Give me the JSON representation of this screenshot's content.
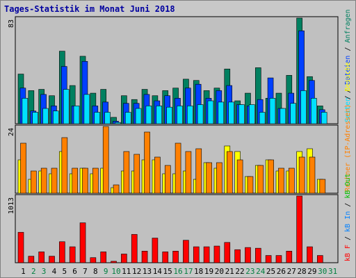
{
  "chart_data": {
    "type": "bar",
    "title": "Tages-Statistik im Monat Juni 2018",
    "categories": [
      1,
      2,
      3,
      4,
      5,
      6,
      7,
      8,
      9,
      10,
      11,
      12,
      13,
      14,
      15,
      16,
      17,
      18,
      19,
      20,
      21,
      22,
      23,
      24,
      25,
      26,
      27,
      28,
      29,
      30,
      31
    ],
    "weekend": [
      2,
      3,
      9,
      10,
      16,
      17,
      23,
      24,
      30,
      31
    ],
    "weekend_color": "#008040",
    "weekday_color": "#000000",
    "separator": "/",
    "panels": [
      {
        "ylim": [
          0,
          83
        ],
        "yticks": [
          83
        ],
        "series": [
          {
            "name": "Anfragen",
            "color": "#008060",
            "values": [
              39,
              26,
              27,
              22,
              57,
              30,
              53,
              24,
              27,
              5,
              22,
              19,
              27,
              22,
              26,
              28,
              35,
              34,
              26,
              28,
              43,
              18,
              24,
              44,
              20,
              24,
              38,
              83,
              37,
              14,
              null
            ]
          },
          {
            "name": "Dateien",
            "color": "#0040ff",
            "values": [
              28,
              10,
              23,
              14,
              45,
              14,
              49,
              14,
              17,
              2,
              16,
              16,
              23,
              18,
              22,
              20,
              28,
              31,
              20,
              26,
              30,
              15,
              14,
              19,
              36,
              12,
              24,
              73,
              34,
              11,
              null
            ]
          },
          {
            "name": "Seiten",
            "color": "#00e0ff",
            "values": [
              20,
              9,
              12,
              10,
              27,
              14,
              23,
              9,
              9,
              1,
              9,
              12,
              14,
              14,
              13,
              14,
              14,
              15,
              18,
              17,
              17,
              15,
              15,
              9,
              20,
              12,
              16,
              26,
              20,
              9,
              null
            ]
          }
        ]
      },
      {
        "ylim": [
          0,
          24
        ],
        "yticks": [
          24
        ],
        "series": [
          {
            "name": "Besuche",
            "color": "#ffff00",
            "values": [
              12,
              5,
              8,
              7,
              15,
              7,
              9,
              7,
              9,
              2,
              8,
              8,
              12,
              12,
              7,
              7,
              8,
              5,
              11,
              9,
              17,
              15,
              6,
              10,
              12,
              8,
              8,
              15,
              16,
              5,
              null
            ]
          },
          {
            "name": "Rechner (IP-Adressen)",
            "color": "#ff8000",
            "values": [
              18,
              8,
              9,
              9,
              20,
              9,
              9,
              9,
              24,
              3,
              15,
              14,
              22,
              13,
              10,
              18,
              15,
              16,
              11,
              11,
              15,
              12,
              6,
              10,
              12,
              9,
              9,
              13,
              13,
              5,
              null
            ]
          }
        ]
      },
      {
        "ylim": [
          0,
          1013
        ],
        "yticks": [
          1013
        ],
        "series": [
          {
            "name": "kB F",
            "color": "#ff0000",
            "values": [
              462,
              99,
              165,
              99,
              319,
              242,
              606,
              77,
              165,
              22,
              132,
              430,
              176,
              374,
              165,
              176,
              341,
              242,
              242,
              253,
              308,
              198,
              231,
              220,
              110,
              110,
              176,
              1013,
              242,
              110,
              null
            ]
          }
        ],
        "legend_only": [
          {
            "name": "kB In",
            "color": "#0080ff"
          },
          {
            "name": "kB Out",
            "color": "#00c000"
          }
        ]
      }
    ]
  }
}
